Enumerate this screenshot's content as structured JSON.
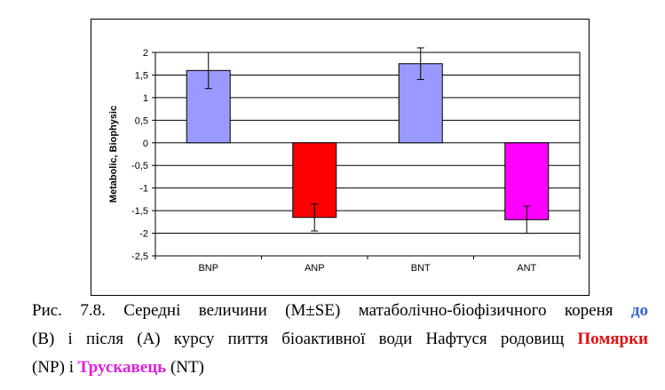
{
  "chart_data": {
    "type": "bar",
    "categories": [
      "BNP",
      "ANP",
      "BNT",
      "ANT"
    ],
    "values": [
      1.6,
      -1.65,
      1.75,
      -1.7
    ],
    "errors": [
      0.4,
      0.3,
      0.35,
      0.3
    ],
    "colors": [
      "#9999ff",
      "#ff0000",
      "#9999ff",
      "#ff00ff"
    ],
    "ylabel": "Metabolic, Biophysic",
    "xlabel": "",
    "ylim": [
      -2.5,
      2
    ],
    "yticks": [
      2,
      1.5,
      1,
      0.5,
      0,
      -0.5,
      -1,
      -1.5,
      -2,
      -2.5
    ],
    "ytick_labels": [
      "2",
      "1,5",
      "1",
      "0,5",
      "0",
      "-0,5",
      "-1",
      "-1,5",
      "-2",
      "-2,5"
    ],
    "grid": true,
    "legend": false
  },
  "caption": {
    "line1_prefix": "Рис. 7.8. Середні величини (M±SE) матаболічно-біофізичного кореня",
    "line1_highlight": "до",
    "line2_prefix": "(B) і після (A) курсу пиття біоактивної води Нафтуся родовищ",
    "line2_highlight": "Помярки",
    "line3_prefix": "(NP) і",
    "line3_highlight": "Трускавець",
    "line3_suffix": "(NT)"
  }
}
